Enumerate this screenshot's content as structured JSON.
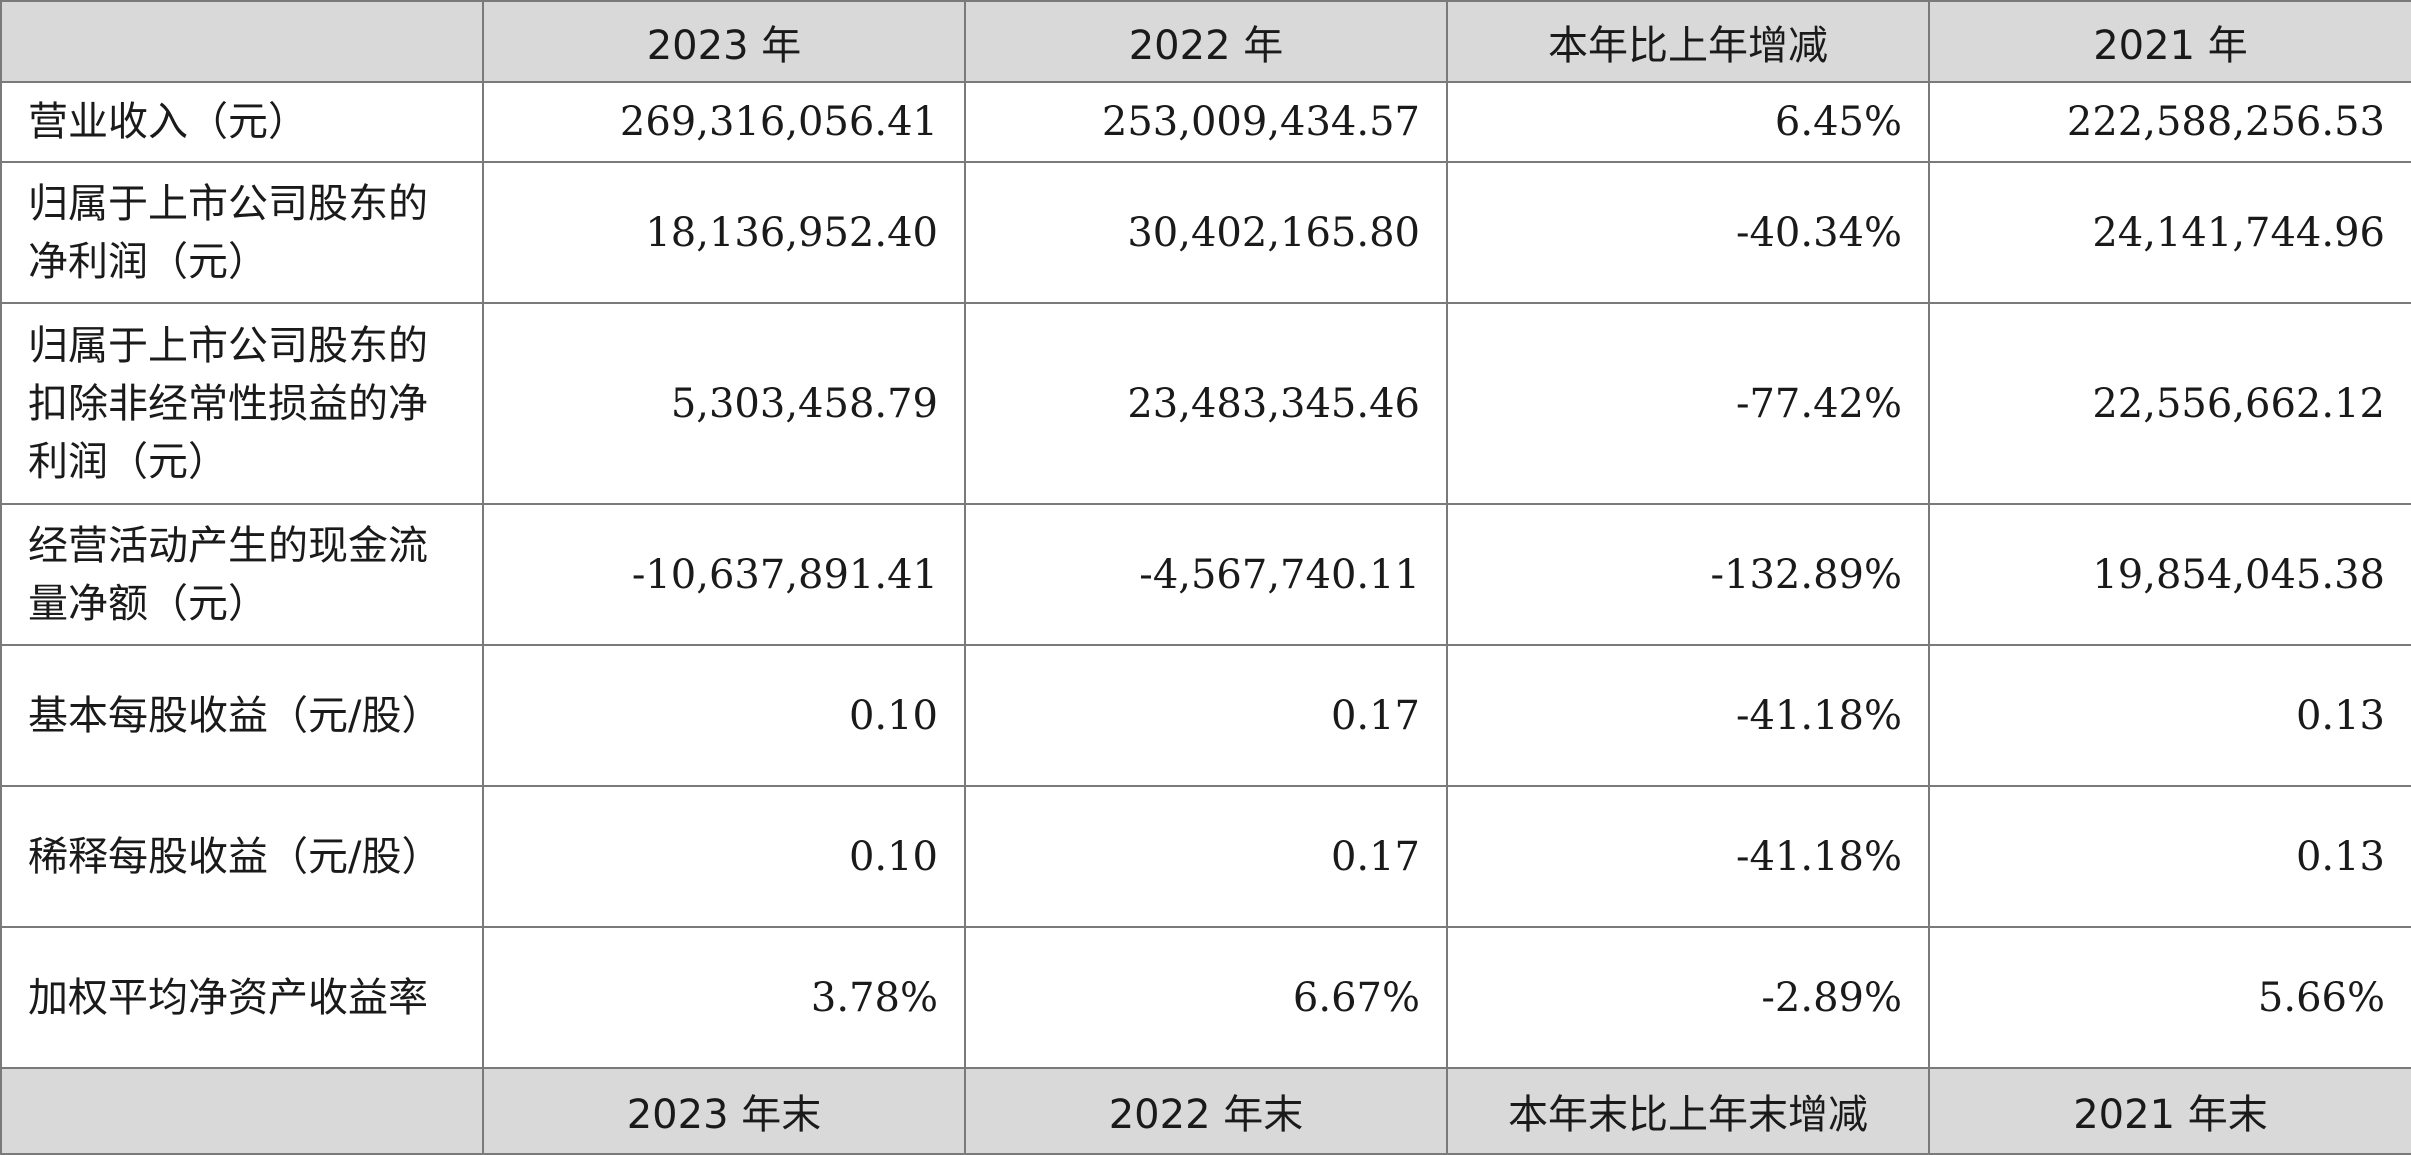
{
  "header": {
    "blank": "",
    "col1": "2023 年",
    "col2": "2022 年",
    "col3": "本年比上年增减",
    "col4": "2021 年"
  },
  "rows": [
    {
      "label": "营业收入（元）",
      "v2023": "269,316,056.41",
      "v2022": "253,009,434.57",
      "change": "6.45%",
      "v2021": "222,588,256.53"
    },
    {
      "label": "归属于上市公司股东的净利润（元）",
      "v2023": "18,136,952.40",
      "v2022": "30,402,165.80",
      "change": "-40.34%",
      "v2021": "24,141,744.96"
    },
    {
      "label": "归属于上市公司股东的扣除非经常性损益的净利润（元）",
      "v2023": "5,303,458.79",
      "v2022": "23,483,345.46",
      "change": "-77.42%",
      "v2021": "22,556,662.12"
    },
    {
      "label": "经营活动产生的现金流量净额（元）",
      "v2023": "-10,637,891.41",
      "v2022": "-4,567,740.11",
      "change": "-132.89%",
      "v2021": "19,854,045.38"
    },
    {
      "label": "基本每股收益（元/股）",
      "v2023": "0.10",
      "v2022": "0.17",
      "change": "-41.18%",
      "v2021": "0.13"
    },
    {
      "label": "稀释每股收益（元/股）",
      "v2023": "0.10",
      "v2022": "0.17",
      "change": "-41.18%",
      "v2021": "0.13"
    },
    {
      "label": "加权平均净资产收益率",
      "v2023": "3.78%",
      "v2022": "6.67%",
      "change": "-2.89%",
      "v2021": "5.66%"
    }
  ],
  "footer_header": {
    "blank": "",
    "col1": "2023 年末",
    "col2": "2022 年末",
    "col3": "本年末比上年末增减",
    "col4": "2021 年末"
  }
}
